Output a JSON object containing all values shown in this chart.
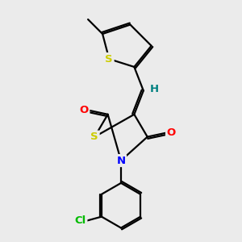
{
  "background_color": "#ebebeb",
  "line_color": "#000000",
  "bond_width": 1.6,
  "atom_colors": {
    "S": "#cccc00",
    "N": "#0000ff",
    "O": "#ff0000",
    "Cl": "#00bb00",
    "H": "#008080",
    "C": "#000000"
  },
  "font_size": 9.5
}
